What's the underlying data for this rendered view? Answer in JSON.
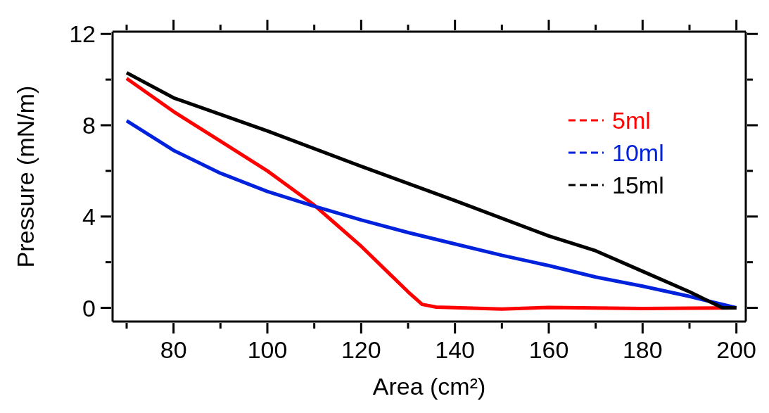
{
  "chart_data": {
    "type": "line",
    "xlabel": "Area (cm²)",
    "ylabel": "Pressure (mN/m)",
    "xlim": [
      67,
      202
    ],
    "ylim": [
      -0.6,
      12.1
    ],
    "xticks": [
      {
        "value": 70,
        "label": null
      },
      80,
      {
        "value": 90,
        "label": null
      },
      100,
      {
        "value": 110,
        "label": null
      },
      120,
      {
        "value": 130,
        "label": null
      },
      140,
      {
        "value": 150,
        "label": null
      },
      160,
      {
        "value": 170,
        "label": null
      },
      180,
      {
        "value": 190,
        "label": null
      },
      200
    ],
    "yticks": [
      0,
      {
        "value": 2,
        "label": null
      },
      4,
      {
        "value": 6,
        "label": null
      },
      8,
      {
        "value": 10,
        "label": null
      },
      12
    ],
    "legend": "top right",
    "marker": "none",
    "line_style": "solid",
    "series": [
      {
        "name": "5ml",
        "color": "#ff0000",
        "x": [
          70,
          80,
          90,
          100,
          110,
          115,
          120,
          125,
          130,
          133,
          136,
          150,
          160,
          180,
          200
        ],
        "values": [
          10.05,
          8.6,
          7.3,
          6.0,
          4.5,
          3.6,
          2.7,
          1.7,
          0.7,
          0.15,
          0.03,
          -0.05,
          0.02,
          -0.03,
          0
        ]
      },
      {
        "name": "10ml",
        "color": "#0022dd",
        "x": [
          70,
          80,
          90,
          100,
          110,
          120,
          130,
          140,
          150,
          160,
          170,
          180,
          190,
          200
        ],
        "values": [
          8.2,
          6.9,
          5.9,
          5.1,
          4.45,
          3.85,
          3.3,
          2.8,
          2.3,
          1.85,
          1.35,
          0.95,
          0.5,
          0
        ]
      },
      {
        "name": "15ml",
        "color": "#000000",
        "x": [
          70,
          80,
          100,
          120,
          140,
          160,
          170,
          180,
          190,
          197,
          200
        ],
        "values": [
          10.3,
          9.2,
          7.75,
          6.2,
          4.7,
          3.15,
          2.5,
          1.6,
          0.7,
          0,
          0
        ]
      }
    ]
  }
}
